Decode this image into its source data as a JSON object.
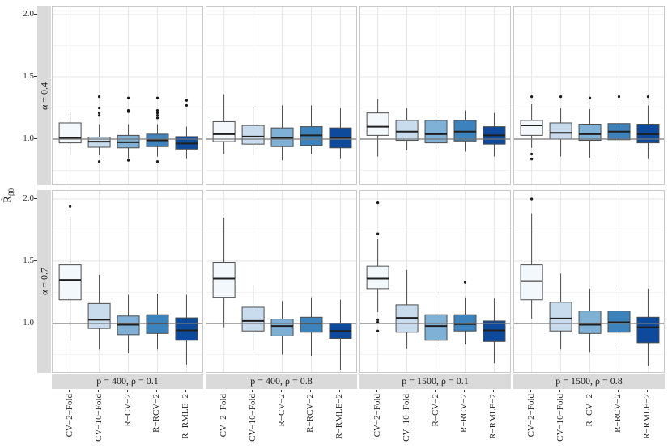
{
  "y_axis": {
    "title_base": "R̂",
    "title_sub": "β̂0",
    "tick_labels": [
      "2.0",
      "1.5",
      "1.0"
    ]
  },
  "colors": {
    "box_fills": [
      "#f3f8fd",
      "#c9dcee",
      "#7eb1d5",
      "#3c82bc",
      "#0d4a9b"
    ],
    "box_stroke": "#4d4d4d",
    "median": "#1f1f1f",
    "whisker": "#4d4d4d",
    "outlier": "#1a1a1a",
    "ref_line": "#777777",
    "grid_major": "#e6e6e6",
    "grid_minor": "#f3f3f3",
    "strip_bg": "#dadada",
    "panel_border": "#c9c9c9"
  },
  "chart_data": {
    "type": "boxplot",
    "categories": [
      "CV−2−Fold",
      "CV−10−Fold",
      "R−CV−2",
      "R−RCV−2",
      "R−RMLE−2"
    ],
    "facet_rows": [
      "α = 0.4",
      "α = 0.7"
    ],
    "facet_cols": [
      "p = 400, ρ = 0.1",
      "p = 400, ρ = 0.8",
      "p = 1500, ρ = 0.1",
      "p = 1500, ρ = 0.8"
    ],
    "ylabel": "R̂_β̂0",
    "y_ticks": [
      1.0,
      1.5,
      2.0
    ],
    "y_minor_ticks": [
      0.75,
      1.25,
      1.75
    ],
    "reference_line": 1.0,
    "ylim": [
      0.6,
      2.06
    ],
    "grid": "major+minor",
    "legend": "none",
    "panels": [
      {
        "r": 0,
        "c": 0,
        "boxes": [
          {
            "lo": 0.87,
            "q1": 0.97,
            "med": 1.01,
            "q3": 1.13,
            "hi": 1.22,
            "out": []
          },
          {
            "lo": 0.87,
            "q1": 0.935,
            "med": 0.98,
            "q3": 1.015,
            "hi": 1.12,
            "out": [
              1.34,
              1.25,
              1.21,
              1.19,
              0.82
            ]
          },
          {
            "lo": 0.85,
            "q1": 0.93,
            "med": 0.975,
            "q3": 1.03,
            "hi": 1.12,
            "out": [
              1.33,
              1.23,
              1.22,
              0.83
            ]
          },
          {
            "lo": 0.86,
            "q1": 0.94,
            "med": 0.99,
            "q3": 1.04,
            "hi": 1.12,
            "out": [
              1.33,
              1.23,
              1.21,
              1.19,
              1.17,
              0.82
            ]
          },
          {
            "lo": 0.84,
            "q1": 0.92,
            "med": 0.965,
            "q3": 1.02,
            "hi": 1.1,
            "out": [
              1.31,
              1.27
            ]
          }
        ]
      },
      {
        "r": 0,
        "c": 1,
        "boxes": [
          {
            "lo": 0.88,
            "q1": 0.98,
            "med": 1.04,
            "q3": 1.14,
            "hi": 1.36,
            "out": []
          },
          {
            "lo": 0.87,
            "q1": 0.96,
            "med": 1.02,
            "q3": 1.11,
            "hi": 1.26,
            "out": []
          },
          {
            "lo": 0.83,
            "q1": 0.94,
            "med": 1.01,
            "q3": 1.09,
            "hi": 1.27,
            "out": []
          },
          {
            "lo": 0.88,
            "q1": 0.95,
            "med": 1.03,
            "q3": 1.1,
            "hi": 1.27,
            "out": []
          },
          {
            "lo": 0.84,
            "q1": 0.93,
            "med": 1.01,
            "q3": 1.09,
            "hi": 1.25,
            "out": []
          }
        ]
      },
      {
        "r": 0,
        "c": 2,
        "boxes": [
          {
            "lo": 0.86,
            "q1": 1.03,
            "med": 1.1,
            "q3": 1.21,
            "hi": 1.32,
            "out": []
          },
          {
            "lo": 0.91,
            "q1": 0.99,
            "med": 1.06,
            "q3": 1.15,
            "hi": 1.25,
            "out": []
          },
          {
            "lo": 0.87,
            "q1": 0.97,
            "med": 1.04,
            "q3": 1.15,
            "hi": 1.23,
            "out": []
          },
          {
            "lo": 0.9,
            "q1": 0.985,
            "med": 1.06,
            "q3": 1.15,
            "hi": 1.23,
            "out": []
          },
          {
            "lo": 0.86,
            "q1": 0.96,
            "med": 1.03,
            "q3": 1.1,
            "hi": 1.21,
            "out": []
          }
        ]
      },
      {
        "r": 0,
        "c": 3,
        "boxes": [
          {
            "lo": 0.93,
            "q1": 1.03,
            "med": 1.11,
            "q3": 1.15,
            "hi": 1.28,
            "out": [
              1.34,
              0.88,
              0.84
            ]
          },
          {
            "lo": 0.86,
            "q1": 1.0,
            "med": 1.05,
            "q3": 1.13,
            "hi": 1.25,
            "out": [
              1.34
            ]
          },
          {
            "lo": 0.85,
            "q1": 0.99,
            "med": 1.04,
            "q3": 1.12,
            "hi": 1.24,
            "out": [
              1.33
            ]
          },
          {
            "lo": 0.86,
            "q1": 0.995,
            "med": 1.06,
            "q3": 1.125,
            "hi": 1.25,
            "out": [
              1.34
            ]
          },
          {
            "lo": 0.84,
            "q1": 0.97,
            "med": 1.04,
            "q3": 1.12,
            "hi": 1.27,
            "out": [
              1.34
            ]
          }
        ]
      },
      {
        "r": 1,
        "c": 0,
        "boxes": [
          {
            "lo": 0.86,
            "q1": 1.19,
            "med": 1.35,
            "q3": 1.47,
            "hi": 1.86,
            "out": [
              1.94
            ]
          },
          {
            "lo": 0.79,
            "q1": 0.96,
            "med": 1.03,
            "q3": 1.16,
            "hi": 1.39,
            "out": []
          },
          {
            "lo": 0.76,
            "q1": 0.91,
            "med": 0.99,
            "q3": 1.06,
            "hi": 1.23,
            "out": []
          },
          {
            "lo": 0.79,
            "q1": 0.92,
            "med": 1.0,
            "q3": 1.07,
            "hi": 1.24,
            "out": []
          },
          {
            "lo": 0.67,
            "q1": 0.865,
            "med": 0.945,
            "q3": 1.045,
            "hi": 1.23,
            "out": []
          }
        ]
      },
      {
        "r": 1,
        "c": 1,
        "boxes": [
          {
            "lo": 0.97,
            "q1": 1.21,
            "med": 1.36,
            "q3": 1.49,
            "hi": 1.85,
            "out": []
          },
          {
            "lo": 0.79,
            "q1": 0.94,
            "med": 1.02,
            "q3": 1.13,
            "hi": 1.31,
            "out": []
          },
          {
            "lo": 0.75,
            "q1": 0.9,
            "med": 0.98,
            "q3": 1.035,
            "hi": 1.18,
            "out": []
          },
          {
            "lo": 0.74,
            "q1": 0.93,
            "med": 1.0,
            "q3": 1.05,
            "hi": 1.21,
            "out": []
          },
          {
            "lo": 0.63,
            "q1": 0.88,
            "med": 0.94,
            "q3": 1.0,
            "hi": 1.19,
            "out": []
          }
        ]
      },
      {
        "r": 1,
        "c": 2,
        "boxes": [
          {
            "lo": 1.09,
            "q1": 1.28,
            "med": 1.36,
            "q3": 1.46,
            "hi": 1.68,
            "out": [
              1.97,
              1.72,
              1.03,
              1.01,
              0.94
            ]
          },
          {
            "lo": 0.8,
            "q1": 0.93,
            "med": 1.045,
            "q3": 1.15,
            "hi": 1.43,
            "out": []
          },
          {
            "lo": 0.81,
            "q1": 0.865,
            "med": 0.98,
            "q3": 1.07,
            "hi": 1.22,
            "out": []
          },
          {
            "lo": 0.83,
            "q1": 0.94,
            "med": 0.995,
            "q3": 1.07,
            "hi": 1.21,
            "out": [
              1.33
            ]
          },
          {
            "lo": 0.68,
            "q1": 0.855,
            "med": 0.945,
            "q3": 1.02,
            "hi": 1.2,
            "out": []
          }
        ]
      },
      {
        "r": 1,
        "c": 3,
        "boxes": [
          {
            "lo": 1.04,
            "q1": 1.19,
            "med": 1.34,
            "q3": 1.47,
            "hi": 1.88,
            "out": [
              2.0
            ]
          },
          {
            "lo": 0.79,
            "q1": 0.94,
            "med": 1.04,
            "q3": 1.17,
            "hi": 1.4,
            "out": []
          },
          {
            "lo": 0.77,
            "q1": 0.92,
            "med": 0.99,
            "q3": 1.1,
            "hi": 1.28,
            "out": []
          },
          {
            "lo": 0.81,
            "q1": 0.93,
            "med": 1.01,
            "q3": 1.1,
            "hi": 1.29,
            "out": []
          },
          {
            "lo": 0.66,
            "q1": 0.845,
            "med": 0.97,
            "q3": 1.05,
            "hi": 1.28,
            "out": []
          }
        ]
      }
    ]
  }
}
